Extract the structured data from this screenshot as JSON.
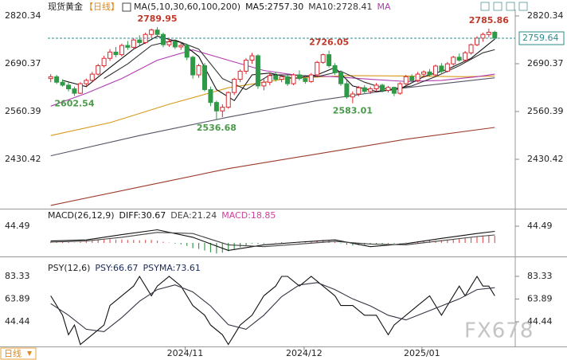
{
  "header": {
    "symbol": "现货黄金",
    "period": "【日线】"
  },
  "footer": {
    "period": "日线",
    "watermark": "FX678"
  },
  "chart_data": [
    {
      "type": "candlestick",
      "title": "MA(5,10,30,60,100,200)",
      "xlim": [
        -0.5,
        75.5
      ],
      "ylim": [
        2296.1,
        2842.0
      ],
      "yticks": [
        2820.34,
        2690.37,
        2560.39,
        2430.42
      ],
      "up_color": "#d9282f",
      "down_color": "#2e9a47",
      "last_price": 2759.64,
      "last_price_color": "#2a8c8c",
      "candles": [
        [
          2650,
          2662,
          2640,
          2655
        ],
        [
          2655,
          2660,
          2635,
          2640
        ],
        [
          2640,
          2648,
          2628,
          2632
        ],
        [
          2632,
          2640,
          2615,
          2622
        ],
        [
          2622,
          2628,
          2602.54,
          2610
        ],
        [
          2610,
          2640,
          2608,
          2636
        ],
        [
          2636,
          2650,
          2630,
          2645
        ],
        [
          2645,
          2668,
          2640,
          2662
        ],
        [
          2662,
          2690,
          2658,
          2685
        ],
        [
          2685,
          2712,
          2680,
          2705
        ],
        [
          2705,
          2730,
          2698,
          2722
        ],
        [
          2722,
          2736,
          2708,
          2715
        ],
        [
          2715,
          2745,
          2710,
          2740
        ],
        [
          2740,
          2752,
          2728,
          2735
        ],
        [
          2735,
          2760,
          2730,
          2755
        ],
        [
          2755,
          2768,
          2740,
          2748
        ],
        [
          2748,
          2775,
          2744,
          2770
        ],
        [
          2770,
          2786,
          2760,
          2782
        ],
        [
          2782,
          2789.95,
          2765,
          2770
        ],
        [
          2770,
          2775,
          2735,
          2742
        ],
        [
          2742,
          2758,
          2736,
          2750
        ],
        [
          2750,
          2756,
          2730,
          2736
        ],
        [
          2736,
          2748,
          2728,
          2740
        ],
        [
          2740,
          2745,
          2700,
          2708
        ],
        [
          2708,
          2712,
          2650,
          2660
        ],
        [
          2660,
          2690,
          2652,
          2685
        ],
        [
          2685,
          2692,
          2615,
          2620
        ],
        [
          2620,
          2628,
          2575,
          2585
        ],
        [
          2585,
          2590,
          2536.68,
          2562
        ],
        [
          2562,
          2580,
          2545,
          2572
        ],
        [
          2572,
          2615,
          2568,
          2612
        ],
        [
          2612,
          2652,
          2605,
          2648
        ],
        [
          2648,
          2675,
          2640,
          2670
        ],
        [
          2670,
          2705,
          2662,
          2700
        ],
        [
          2700,
          2720,
          2690,
          2712
        ],
        [
          2712,
          2716,
          2622,
          2630
        ],
        [
          2630,
          2648,
          2618,
          2640
        ],
        [
          2640,
          2665,
          2632,
          2658
        ],
        [
          2658,
          2668,
          2642,
          2648
        ],
        [
          2648,
          2662,
          2640,
          2655
        ],
        [
          2655,
          2660,
          2630,
          2636
        ],
        [
          2636,
          2664,
          2632,
          2660
        ],
        [
          2660,
          2672,
          2645,
          2650
        ],
        [
          2650,
          2660,
          2636,
          2642
        ],
        [
          2642,
          2665,
          2638,
          2660
        ],
        [
          2660,
          2698,
          2655,
          2694
        ],
        [
          2694,
          2718,
          2690,
          2715
        ],
        [
          2715,
          2726.05,
          2680,
          2685
        ],
        [
          2685,
          2692,
          2660,
          2666
        ],
        [
          2666,
          2672,
          2630,
          2636
        ],
        [
          2636,
          2645,
          2595,
          2600
        ],
        [
          2600,
          2615,
          2583.01,
          2608
        ],
        [
          2608,
          2630,
          2602,
          2625
        ],
        [
          2625,
          2632,
          2610,
          2615
        ],
        [
          2615,
          2628,
          2608,
          2622
        ],
        [
          2622,
          2638,
          2615,
          2632
        ],
        [
          2632,
          2636,
          2612,
          2618
        ],
        [
          2618,
          2630,
          2612,
          2626
        ],
        [
          2626,
          2628,
          2602,
          2610
        ],
        [
          2610,
          2640,
          2606,
          2636
        ],
        [
          2636,
          2660,
          2630,
          2655
        ],
        [
          2655,
          2662,
          2638,
          2645
        ],
        [
          2645,
          2668,
          2640,
          2662
        ],
        [
          2662,
          2672,
          2652,
          2668
        ],
        [
          2668,
          2676,
          2655,
          2660
        ],
        [
          2660,
          2688,
          2656,
          2684
        ],
        [
          2684,
          2692,
          2665,
          2670
        ],
        [
          2670,
          2695,
          2666,
          2690
        ],
        [
          2690,
          2712,
          2685,
          2708
        ],
        [
          2708,
          2718,
          2696,
          2700
        ],
        [
          2700,
          2725,
          2696,
          2720
        ],
        [
          2720,
          2745,
          2715,
          2742
        ],
        [
          2742,
          2765,
          2738,
          2760
        ],
        [
          2760,
          2775,
          2750,
          2770
        ],
        [
          2770,
          2785.86,
          2762,
          2776
        ],
        [
          2776,
          2780,
          2755,
          2759.64
        ]
      ],
      "series": [
        {
          "name": "MA5:2757.30",
          "color": "#111111",
          "x": [
            2,
            6,
            10,
            14,
            18,
            22,
            25,
            28,
            31,
            34,
            37,
            41,
            45,
            48,
            51,
            55,
            59,
            63,
            67,
            71,
            75
          ],
          "values": [
            2645,
            2628,
            2680,
            2730,
            2765,
            2748,
            2710,
            2620,
            2590,
            2660,
            2665,
            2650,
            2660,
            2680,
            2630,
            2615,
            2622,
            2655,
            2675,
            2705,
            2757.3
          ]
        },
        {
          "name": "MA10:2728.41",
          "color": "#333333",
          "x": [
            9,
            13,
            17,
            21,
            25,
            29,
            33,
            37,
            41,
            45,
            49,
            53,
            57,
            61,
            65,
            69,
            73,
            75
          ],
          "values": [
            2650,
            2690,
            2740,
            2755,
            2730,
            2650,
            2620,
            2660,
            2660,
            2655,
            2670,
            2640,
            2620,
            2630,
            2655,
            2685,
            2720,
            2728.41
          ]
        },
        {
          "name": "MA",
          "color": "#b03cb0",
          "x": [
            0,
            6,
            12,
            18,
            24,
            30,
            36,
            42,
            48,
            54,
            60,
            66,
            72,
            75
          ],
          "values": [
            2575,
            2610,
            2650,
            2700,
            2728,
            2700,
            2672,
            2658,
            2655,
            2648,
            2642,
            2645,
            2655,
            2662
          ]
        },
        {
          "color": "#d89a1c",
          "x": [
            0,
            10,
            20,
            30,
            40,
            50,
            60,
            70,
            75
          ],
          "values": [
            2495,
            2530,
            2580,
            2625,
            2650,
            2658,
            2657,
            2655,
            2657
          ]
        },
        {
          "color": "#555566",
          "x": [
            0,
            15,
            30,
            45,
            60,
            75
          ],
          "values": [
            2440,
            2495,
            2545,
            2590,
            2625,
            2652
          ]
        },
        {
          "color": "#9c3a2a",
          "x": [
            0,
            15,
            30,
            45,
            60,
            75
          ],
          "values": [
            2305,
            2355,
            2405,
            2445,
            2485,
            2517
          ]
        }
      ],
      "annotations": [
        {
          "x": 18,
          "value": 2789.95,
          "position": "above",
          "color": "#c0392b"
        },
        {
          "x": 4,
          "value": 2602.54,
          "position": "below",
          "color": "#4a9a4a"
        },
        {
          "x": 28,
          "value": 2536.68,
          "position": "below",
          "color": "#4a9a4a"
        },
        {
          "x": 47,
          "value": 2726.05,
          "position": "above",
          "color": "#c0392b"
        },
        {
          "x": 51,
          "value": 2583.01,
          "position": "below",
          "color": "#4a9a4a"
        },
        {
          "x": 74,
          "value": 2785.86,
          "position": "above",
          "color": "#c0392b"
        }
      ]
    },
    {
      "type": "macd",
      "title": "MACD(26,12,9)",
      "xlim": [
        -0.5,
        75.5
      ],
      "ylim": [
        -36,
        91
      ],
      "yticks": [
        44.49
      ],
      "histogram": {
        "name": "MACD:18.85",
        "color": "#d0409a",
        "up_color": "#e05a5a",
        "down_color": "#3a9a4a",
        "values": [
          4,
          3,
          2,
          2,
          1,
          3,
          5,
          6,
          8,
          9,
          10,
          9,
          9,
          8,
          8,
          7,
          8,
          8,
          6,
          3,
          1,
          -2,
          -4,
          -8,
          -14,
          -16,
          -20,
          -25,
          -28,
          -26,
          -22,
          -17,
          -12,
          -7,
          -2,
          -3,
          -2,
          0,
          1,
          2,
          1,
          2,
          2,
          1,
          3,
          6,
          8,
          6,
          3,
          -1,
          -5,
          -7,
          -6,
          -5,
          -4,
          -4,
          -3,
          -2,
          -2,
          -1,
          1,
          2,
          4,
          5,
          6,
          6,
          7,
          8,
          9,
          10,
          12,
          15,
          18,
          20,
          21,
          18.85
        ]
      },
      "series": [
        {
          "name": "DIFF:30.67",
          "color": "#111111",
          "x": [
            0,
            6,
            12,
            18,
            24,
            30,
            36,
            42,
            48,
            54,
            60,
            66,
            72,
            75
          ],
          "values": [
            5,
            8,
            22,
            35,
            15,
            -20,
            -5,
            2,
            8,
            -10,
            -2,
            12,
            25,
            30.67
          ]
        },
        {
          "name": "DEA:21.24",
          "color": "#444444",
          "x": [
            0,
            6,
            12,
            18,
            24,
            30,
            36,
            42,
            48,
            54,
            60,
            66,
            72,
            75
          ],
          "values": [
            2,
            5,
            15,
            28,
            25,
            -5,
            -10,
            -3,
            4,
            -3,
            -5,
            6,
            17,
            21.24
          ]
        }
      ]
    },
    {
      "type": "line",
      "title": "PSY(12,6)",
      "xlim": [
        -0.5,
        75.5
      ],
      "ylim": [
        23.3,
        98.3
      ],
      "yticks": [
        83.33,
        63.89,
        44.44
      ],
      "xticks": [
        {
          "value": 22.7,
          "label": "2024/11"
        },
        {
          "value": 42.8,
          "label": "2024/12"
        },
        {
          "value": 62.7,
          "label": "2025/01"
        }
      ],
      "series": [
        {
          "name": "PSY:66.67",
          "color": "#111111",
          "x": [
            0,
            2,
            3,
            4,
            5,
            7,
            9,
            10,
            12,
            14,
            15,
            17,
            18,
            20,
            22,
            24,
            26,
            27,
            29,
            30,
            31,
            32,
            34,
            36,
            38,
            39,
            40,
            42,
            44,
            46,
            48,
            49,
            51,
            53,
            55,
            56,
            57,
            58,
            60,
            62,
            64,
            65,
            66,
            67,
            69,
            70,
            71,
            72,
            73,
            74,
            75
          ],
          "values": [
            66.67,
            50,
            33.33,
            41.67,
            25,
            33.33,
            41.67,
            58.33,
            66.67,
            75,
            83.33,
            66.67,
            75,
            83.33,
            75,
            58.33,
            50,
            41.67,
            33.33,
            25,
            33.33,
            41.67,
            50,
            66.67,
            75,
            83.33,
            83.33,
            75,
            83.33,
            75,
            66.67,
            58.33,
            58.33,
            50,
            50,
            41.67,
            33.33,
            41.67,
            50,
            58.33,
            66.67,
            58.33,
            50,
            58.33,
            75,
            66.67,
            75,
            83.33,
            75,
            75,
            66.67
          ]
        },
        {
          "name": "PSYMA:73.61",
          "color": "#333344",
          "x": [
            0,
            3,
            6,
            9,
            12,
            15,
            18,
            21,
            24,
            27,
            30,
            33,
            36,
            39,
            42,
            45,
            48,
            51,
            54,
            57,
            60,
            63,
            66,
            69,
            72,
            75
          ],
          "values": [
            60,
            50,
            38,
            36,
            48,
            62,
            72,
            76,
            70,
            58,
            42,
            38,
            50,
            66,
            76,
            78,
            72,
            64,
            58,
            50,
            46,
            52,
            58,
            64,
            72,
            73.61
          ]
        }
      ]
    }
  ]
}
